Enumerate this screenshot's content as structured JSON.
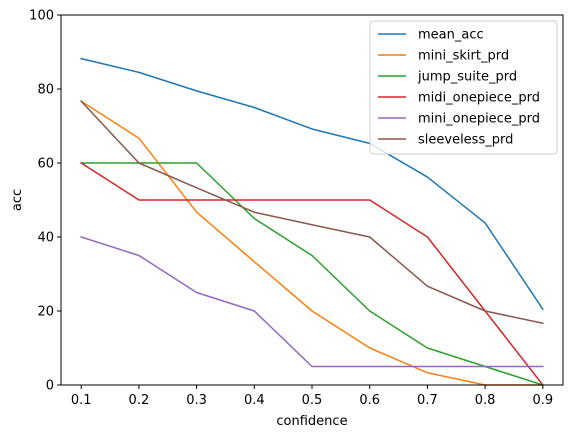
{
  "chart_data": {
    "type": "line",
    "xlabel": "confidence",
    "ylabel": "acc",
    "xlim": [
      0.065,
      0.935
    ],
    "ylim": [
      0,
      100
    ],
    "xticks": [
      0.1,
      0.2,
      0.3,
      0.4,
      0.5,
      0.6,
      0.7,
      0.8,
      0.9
    ],
    "xtick_labels": [
      "0.1",
      "0.2",
      "0.3",
      "0.4",
      "0.5",
      "0.6",
      "0.7",
      "0.8",
      "0.9"
    ],
    "yticks": [
      0,
      20,
      40,
      60,
      80,
      100
    ],
    "ytick_labels": [
      "0",
      "20",
      "40",
      "60",
      "80",
      "100"
    ],
    "grid": false,
    "legend_position": "top-right",
    "x": [
      0.1,
      0.2,
      0.3,
      0.4,
      0.5,
      0.6,
      0.7,
      0.8,
      0.9
    ],
    "series": [
      {
        "name": "mean_acc",
        "color": "#1f77b4",
        "values": [
          88.2,
          84.5,
          79.5,
          75.0,
          69.2,
          65.3,
          56.2,
          43.8,
          20.5
        ]
      },
      {
        "name": "mini_skirt_prd",
        "color": "#ff7f0e",
        "values": [
          76.7,
          66.7,
          46.7,
          33.3,
          20.0,
          10.0,
          3.3,
          0,
          0
        ]
      },
      {
        "name": "jump_suite_prd",
        "color": "#2ca02c",
        "values": [
          60,
          60,
          60,
          45,
          35,
          20,
          10,
          5,
          0
        ]
      },
      {
        "name": "midi_onepiece_prd",
        "color": "#d62728",
        "values": [
          60,
          50,
          50,
          50,
          50,
          50,
          40,
          20,
          0
        ]
      },
      {
        "name": "mini_onepiece_prd",
        "color": "#9467bd",
        "values": [
          40,
          35,
          25,
          20,
          5,
          5,
          5,
          5,
          5
        ]
      },
      {
        "name": "sleeveless_prd",
        "color": "#8c564b",
        "values": [
          76.7,
          60,
          53.3,
          46.7,
          43.3,
          40,
          26.7,
          20,
          16.7
        ]
      }
    ]
  }
}
